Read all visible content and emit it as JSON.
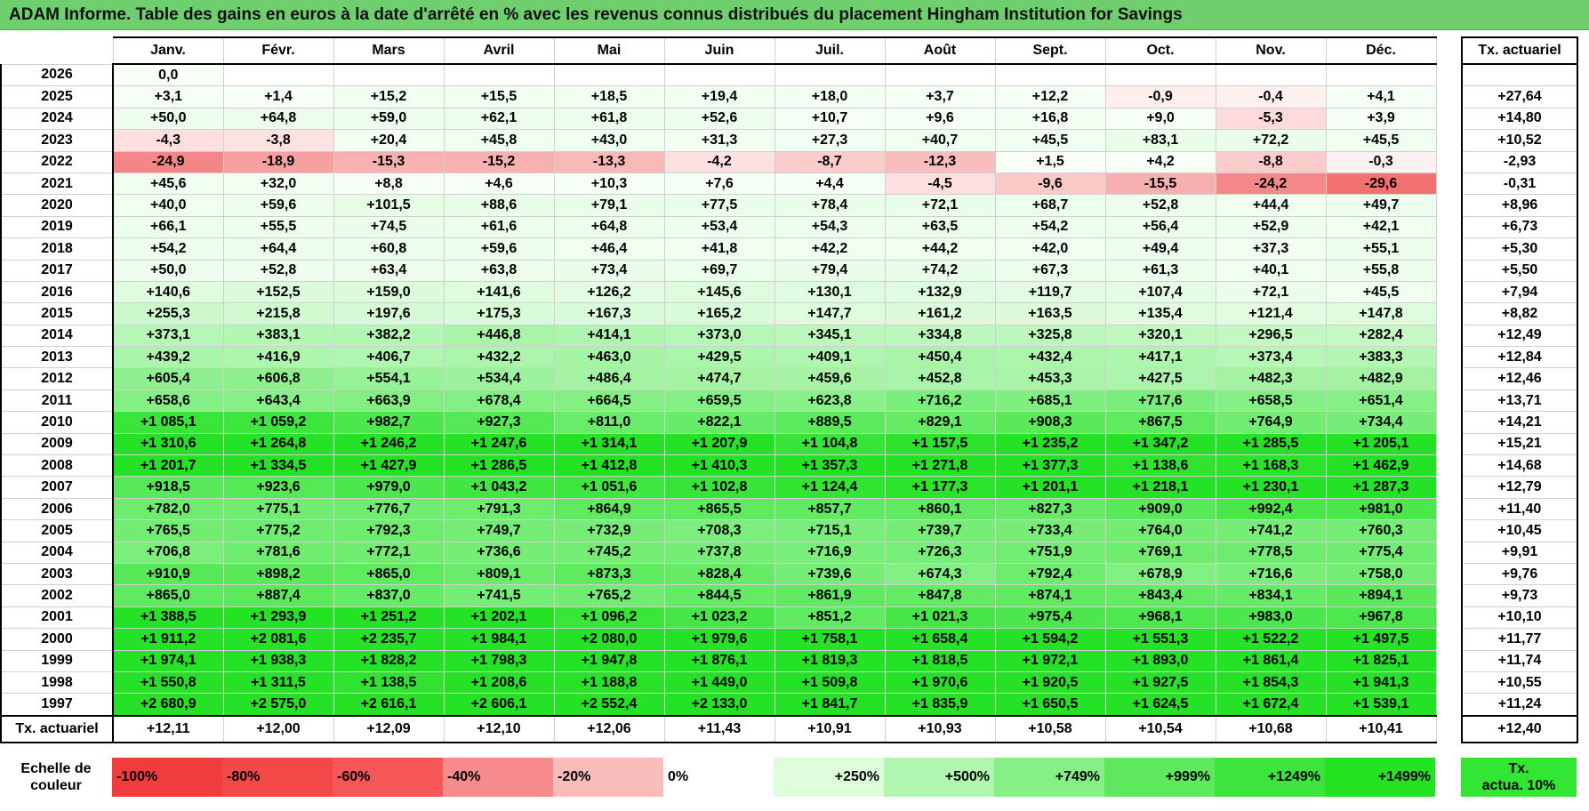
{
  "title": "ADAM Informe. Table des gains en euros à la date d'arrêté en % avec les revenus connus distribués du placement Hingham Institution for Savings",
  "months": [
    "Janv.",
    "Févr.",
    "Mars",
    "Avril",
    "Mai",
    "Juin",
    "Juil.",
    "Août",
    "Sept.",
    "Oct.",
    "Nov.",
    "Déc."
  ],
  "tx_header": "Tx. actuariel",
  "rows": [
    {
      "year": "2026",
      "values": [
        "0,0",
        "",
        "",
        "",
        "",
        "",
        "",
        "",
        "",
        "",
        "",
        ""
      ],
      "tx": ""
    },
    {
      "year": "2025",
      "values": [
        "+3,1",
        "+1,4",
        "+15,2",
        "+15,5",
        "+18,5",
        "+19,4",
        "+18,0",
        "+3,7",
        "+12,2",
        "-0,9",
        "-0,4",
        "+4,1"
      ],
      "tx": "+27,64"
    },
    {
      "year": "2024",
      "values": [
        "+50,0",
        "+64,8",
        "+59,0",
        "+62,1",
        "+61,8",
        "+52,6",
        "+10,7",
        "+9,6",
        "+16,8",
        "+9,0",
        "-5,3",
        "+3,9"
      ],
      "tx": "+14,80"
    },
    {
      "year": "2023",
      "values": [
        "-4,3",
        "-3,8",
        "+20,4",
        "+45,8",
        "+43,0",
        "+31,3",
        "+27,3",
        "+40,7",
        "+45,5",
        "+83,1",
        "+72,2",
        "+45,5"
      ],
      "tx": "+10,52"
    },
    {
      "year": "2022",
      "values": [
        "-24,9",
        "-18,9",
        "-15,3",
        "-15,2",
        "-13,3",
        "-4,2",
        "-8,7",
        "-12,3",
        "+1,5",
        "+4,2",
        "-8,8",
        "-0,3"
      ],
      "tx": "-2,93"
    },
    {
      "year": "2021",
      "values": [
        "+45,6",
        "+32,0",
        "+8,8",
        "+4,6",
        "+10,3",
        "+7,6",
        "+4,4",
        "-4,5",
        "-9,6",
        "-15,5",
        "-24,2",
        "-29,6"
      ],
      "tx": "-0,31"
    },
    {
      "year": "2020",
      "values": [
        "+40,0",
        "+59,6",
        "+101,5",
        "+88,6",
        "+79,1",
        "+77,5",
        "+78,4",
        "+72,1",
        "+68,7",
        "+52,8",
        "+44,4",
        "+49,7"
      ],
      "tx": "+8,96"
    },
    {
      "year": "2019",
      "values": [
        "+66,1",
        "+55,5",
        "+74,5",
        "+61,6",
        "+64,8",
        "+53,4",
        "+54,3",
        "+63,5",
        "+54,2",
        "+56,4",
        "+52,9",
        "+42,1"
      ],
      "tx": "+6,73"
    },
    {
      "year": "2018",
      "values": [
        "+54,2",
        "+64,4",
        "+60,8",
        "+59,6",
        "+46,4",
        "+41,8",
        "+42,2",
        "+44,2",
        "+42,0",
        "+49,4",
        "+37,3",
        "+55,1"
      ],
      "tx": "+5,30"
    },
    {
      "year": "2017",
      "values": [
        "+50,0",
        "+52,8",
        "+63,4",
        "+63,8",
        "+73,4",
        "+69,7",
        "+79,4",
        "+74,2",
        "+67,3",
        "+61,3",
        "+40,1",
        "+55,8"
      ],
      "tx": "+5,50"
    },
    {
      "year": "2016",
      "values": [
        "+140,6",
        "+152,5",
        "+159,0",
        "+141,6",
        "+126,2",
        "+145,6",
        "+130,1",
        "+132,9",
        "+119,7",
        "+107,4",
        "+72,1",
        "+45,5"
      ],
      "tx": "+7,94"
    },
    {
      "year": "2015",
      "values": [
        "+255,3",
        "+215,8",
        "+197,6",
        "+175,3",
        "+167,3",
        "+165,2",
        "+147,7",
        "+161,2",
        "+163,5",
        "+135,4",
        "+121,4",
        "+147,8"
      ],
      "tx": "+8,82"
    },
    {
      "year": "2014",
      "values": [
        "+373,1",
        "+383,1",
        "+382,2",
        "+446,8",
        "+414,1",
        "+373,0",
        "+345,1",
        "+334,8",
        "+325,8",
        "+320,1",
        "+296,5",
        "+282,4"
      ],
      "tx": "+12,49"
    },
    {
      "year": "2013",
      "values": [
        "+439,2",
        "+416,9",
        "+406,7",
        "+432,2",
        "+463,0",
        "+429,5",
        "+409,1",
        "+450,4",
        "+432,4",
        "+417,1",
        "+373,4",
        "+383,3"
      ],
      "tx": "+12,84"
    },
    {
      "year": "2012",
      "values": [
        "+605,4",
        "+606,8",
        "+554,1",
        "+534,4",
        "+486,4",
        "+474,7",
        "+459,6",
        "+452,8",
        "+453,3",
        "+427,5",
        "+482,3",
        "+482,9"
      ],
      "tx": "+12,46"
    },
    {
      "year": "2011",
      "values": [
        "+658,6",
        "+643,4",
        "+663,9",
        "+678,4",
        "+664,5",
        "+659,5",
        "+623,8",
        "+716,2",
        "+685,1",
        "+717,6",
        "+658,5",
        "+651,4"
      ],
      "tx": "+13,71"
    },
    {
      "year": "2010",
      "values": [
        "+1 085,1",
        "+1 059,2",
        "+982,7",
        "+927,3",
        "+811,0",
        "+822,1",
        "+889,5",
        "+829,1",
        "+908,3",
        "+867,5",
        "+764,9",
        "+734,4"
      ],
      "tx": "+14,21"
    },
    {
      "year": "2009",
      "values": [
        "+1 310,6",
        "+1 264,8",
        "+1 246,2",
        "+1 247,6",
        "+1 314,1",
        "+1 207,9",
        "+1 104,8",
        "+1 157,5",
        "+1 235,2",
        "+1 347,2",
        "+1 285,5",
        "+1 205,1"
      ],
      "tx": "+15,21"
    },
    {
      "year": "2008",
      "values": [
        "+1 201,7",
        "+1 334,5",
        "+1 427,9",
        "+1 286,5",
        "+1 412,8",
        "+1 410,3",
        "+1 357,3",
        "+1 271,8",
        "+1 377,3",
        "+1 138,6",
        "+1 168,3",
        "+1 462,9"
      ],
      "tx": "+14,68"
    },
    {
      "year": "2007",
      "values": [
        "+918,5",
        "+923,6",
        "+979,0",
        "+1 043,2",
        "+1 051,6",
        "+1 102,8",
        "+1 124,4",
        "+1 177,3",
        "+1 201,1",
        "+1 218,1",
        "+1 230,1",
        "+1 287,3"
      ],
      "tx": "+12,79"
    },
    {
      "year": "2006",
      "values": [
        "+782,0",
        "+775,1",
        "+776,7",
        "+791,3",
        "+864,9",
        "+865,5",
        "+857,7",
        "+860,1",
        "+827,3",
        "+909,0",
        "+992,4",
        "+981,0"
      ],
      "tx": "+11,40"
    },
    {
      "year": "2005",
      "values": [
        "+765,5",
        "+775,2",
        "+792,3",
        "+749,7",
        "+732,9",
        "+708,3",
        "+715,1",
        "+739,7",
        "+733,4",
        "+764,0",
        "+741,2",
        "+760,3"
      ],
      "tx": "+10,45"
    },
    {
      "year": "2004",
      "values": [
        "+706,8",
        "+781,6",
        "+772,1",
        "+736,6",
        "+745,2",
        "+737,8",
        "+716,9",
        "+726,3",
        "+751,9",
        "+769,1",
        "+778,5",
        "+775,4"
      ],
      "tx": "+9,91"
    },
    {
      "year": "2003",
      "values": [
        "+910,9",
        "+898,2",
        "+865,0",
        "+809,1",
        "+873,3",
        "+828,4",
        "+739,6",
        "+674,3",
        "+792,4",
        "+678,9",
        "+716,6",
        "+758,0"
      ],
      "tx": "+9,76"
    },
    {
      "year": "2002",
      "values": [
        "+865,0",
        "+887,4",
        "+837,0",
        "+741,5",
        "+765,2",
        "+844,5",
        "+861,9",
        "+847,8",
        "+874,1",
        "+843,4",
        "+834,1",
        "+894,1"
      ],
      "tx": "+9,73"
    },
    {
      "year": "2001",
      "values": [
        "+1 388,5",
        "+1 293,9",
        "+1 251,2",
        "+1 202,1",
        "+1 096,2",
        "+1 023,2",
        "+851,2",
        "+1 021,3",
        "+975,4",
        "+968,1",
        "+983,0",
        "+967,8"
      ],
      "tx": "+10,10"
    },
    {
      "year": "2000",
      "values": [
        "+1 911,2",
        "+2 081,6",
        "+2 235,7",
        "+1 984,1",
        "+2 080,0",
        "+1 979,6",
        "+1 758,1",
        "+1 658,4",
        "+1 594,2",
        "+1 551,3",
        "+1 522,2",
        "+1 497,5"
      ],
      "tx": "+11,77"
    },
    {
      "year": "1999",
      "values": [
        "+1 974,1",
        "+1 938,3",
        "+1 828,2",
        "+1 798,3",
        "+1 947,8",
        "+1 876,1",
        "+1 819,3",
        "+1 818,5",
        "+1 972,1",
        "+1 893,0",
        "+1 861,4",
        "+1 825,1"
      ],
      "tx": "+11,74"
    },
    {
      "year": "1998",
      "values": [
        "+1 550,8",
        "+1 311,5",
        "+1 138,5",
        "+1 208,6",
        "+1 188,8",
        "+1 449,0",
        "+1 509,8",
        "+1 970,6",
        "+1 920,5",
        "+1 927,5",
        "+1 854,3",
        "+1 941,3"
      ],
      "tx": "+10,55"
    },
    {
      "year": "1997",
      "values": [
        "+2 680,9",
        "+2 575,0",
        "+2 616,1",
        "+2 606,1",
        "+2 552,4",
        "+2 133,0",
        "+1 841,7",
        "+1 835,9",
        "+1 650,5",
        "+1 624,5",
        "+1 672,4",
        "+1 539,1"
      ],
      "tx": "+11,24"
    }
  ],
  "actuarial_row": {
    "label": "Tx. actuariel",
    "values": [
      "+12,11",
      "+12,00",
      "+12,09",
      "+12,10",
      "+12,06",
      "+11,43",
      "+10,91",
      "+10,93",
      "+10,58",
      "+10,54",
      "+10,68",
      "+10,41"
    ],
    "total": "+12,40"
  },
  "legend": {
    "label_line1": "Echelle de",
    "label_line2": "couleur",
    "items": [
      {
        "text": "-100%",
        "color": "#f03c3c",
        "align": "left"
      },
      {
        "text": "-80%",
        "color": "#f24848",
        "align": "left"
      },
      {
        "text": "-60%",
        "color": "#f55656",
        "align": "left"
      },
      {
        "text": "-40%",
        "color": "#f78a8a",
        "align": "left"
      },
      {
        "text": "-20%",
        "color": "#fbbcbc",
        "align": "left"
      },
      {
        "text": "0%",
        "color": "#ffffff",
        "align": "center"
      },
      {
        "text": "+250%",
        "color": "#dcfcdc",
        "align": "right"
      },
      {
        "text": "+500%",
        "color": "#b0f6b0",
        "align": "right"
      },
      {
        "text": "+749%",
        "color": "#86f086",
        "align": "right"
      },
      {
        "text": "+999%",
        "color": "#5de85d",
        "align": "right"
      },
      {
        "text": "+1249%",
        "color": "#3ce43c",
        "align": "right"
      },
      {
        "text": "+1499%",
        "color": "#22e222",
        "align": "right"
      }
    ],
    "tx_line1": "Tx.",
    "tx_line2": "actua. 10%"
  }
}
